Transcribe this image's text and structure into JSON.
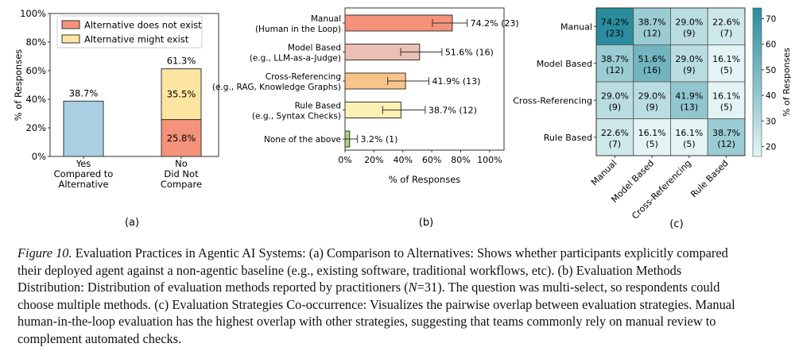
{
  "chart_data": [
    {
      "type": "bar",
      "stacked": true,
      "panel_label": "(a)",
      "ylabel": "% of Responses",
      "ylim": [
        0,
        100
      ],
      "yticks": [
        "0%",
        "20%",
        "40%",
        "60%",
        "80%",
        "100%"
      ],
      "categories": [
        {
          "line1": "Yes",
          "line2": "Compared to",
          "line3": "Alternative"
        },
        {
          "line1": "No",
          "line2": "Did Not",
          "line3": "Compare"
        }
      ],
      "series": [
        {
          "name": "",
          "color": "#a9cfe3",
          "values": [
            38.7,
            null
          ],
          "labels": [
            "",
            ""
          ]
        },
        {
          "name": "Alternative does not exist",
          "color": "#f4937a",
          "values": [
            null,
            25.8
          ],
          "labels": [
            "",
            "25.8%"
          ]
        },
        {
          "name": "Alternative might exist",
          "color": "#fde4a0",
          "values": [
            null,
            35.5
          ],
          "labels": [
            "",
            "35.5%"
          ]
        }
      ],
      "totals": [
        "38.7%",
        "61.3%"
      ],
      "legend_position": "top-right"
    },
    {
      "type": "bar",
      "orientation": "horizontal",
      "panel_label": "(b)",
      "xlabel": "% of Responses",
      "xlim": [
        0,
        110
      ],
      "xticks": [
        "0%",
        "20%",
        "40%",
        "60%",
        "80%",
        "100%"
      ],
      "categories": [
        {
          "line1": "Manual",
          "line2": "(Human in the Loop)",
          "color": "#f4937a",
          "value": 74.2,
          "err": [
            60.5,
            84.5
          ],
          "label": "74.2% (23)"
        },
        {
          "line1": "Model Based",
          "line2": "(e.g., LLM-as-a-Judge)",
          "color": "#ebbfb3",
          "value": 51.6,
          "err": [
            38.5,
            67.0
          ],
          "label": "51.6% (16)"
        },
        {
          "line1": "Cross-Referencing",
          "line2": "(e.g., RAG, Knowledge Graphs)",
          "color": "#f9c48a",
          "value": 41.9,
          "err": [
            29.5,
            58.0
          ],
          "label": "41.9% (13)"
        },
        {
          "line1": "Rule Based",
          "line2": "(e.g., Syntax Checks)",
          "color": "#fdf1b3",
          "value": 38.7,
          "err": [
            26.0,
            55.5
          ],
          "label": "38.7% (12)"
        },
        {
          "line1": "None of the above",
          "line2": "",
          "color": "#a6d67a",
          "value": 3.2,
          "err": [
            0.0,
            8.5
          ],
          "label": "3.2% (1)"
        }
      ]
    },
    {
      "type": "heatmap",
      "panel_label": "(c)",
      "rows": [
        "Manual",
        "Model Based",
        "Cross-Referencing",
        "Rule Based"
      ],
      "cols": [
        "Manual",
        "Model Based",
        "Cross-Referencing",
        "Rule Based"
      ],
      "values": [
        [
          74.2,
          38.7,
          29.0,
          22.6
        ],
        [
          38.7,
          51.6,
          29.0,
          16.1
        ],
        [
          29.0,
          29.0,
          41.9,
          16.1
        ],
        [
          22.6,
          16.1,
          16.1,
          38.7
        ]
      ],
      "cells": [
        [
          [
            "74.2%",
            "(23)"
          ],
          [
            "38.7%",
            "(12)"
          ],
          [
            "29.0%",
            "(9)"
          ],
          [
            "22.6%",
            "(7)"
          ]
        ],
        [
          [
            "38.7%",
            "(12)"
          ],
          [
            "51.6%",
            "(16)"
          ],
          [
            "29.0%",
            "(9)"
          ],
          [
            "16.1%",
            "(5)"
          ]
        ],
        [
          [
            "29.0%",
            "(9)"
          ],
          [
            "29.0%",
            "(9)"
          ],
          [
            "41.9%",
            "(13)"
          ],
          [
            "16.1%",
            "(5)"
          ]
        ],
        [
          [
            "22.6%",
            "(7)"
          ],
          [
            "16.1%",
            "(5)"
          ],
          [
            "16.1%",
            "(5)"
          ],
          [
            "38.7%",
            "(12)"
          ]
        ]
      ],
      "colorbar": {
        "label": "% of Responses",
        "min": 16.1,
        "max": 74.2,
        "ticks": [
          "20",
          "30",
          "40",
          "50",
          "60",
          "70"
        ]
      },
      "colors": {
        "low": "#e3f4f4",
        "high": "#2a8c9e"
      }
    }
  ],
  "caption": {
    "figure_label": "Figure 10.",
    "line1": " Evaluation Practices in Agentic AI Systems: (a) Comparison to Alternatives: Shows whether participants explicitly compared",
    "line2": "their deployed agent against a non-agentic baseline (e.g., existing software, traditional workflows, etc).  (b) Evaluation Methods",
    "line3_a": "Distribution: Distribution of evaluation methods reported by practitioners (",
    "line3_n": "N",
    "line3_b": "=31). The question was multi-select, so respondents could",
    "line4": "choose multiple methods. (c) Evaluation Strategies Co-occurrence: Visualizes the pairwise overlap between evaluation strategies. Manual",
    "line5": "human-in-the-loop evaluation has the highest overlap with other strategies, suggesting that teams commonly rely on manual review to",
    "line6": "complement automated checks."
  }
}
